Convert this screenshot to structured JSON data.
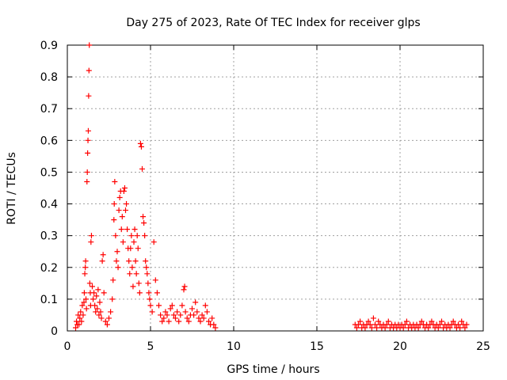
{
  "chart_data": {
    "type": "scatter",
    "title": "Day 275 of 2023, Rate Of TEC Index for receiver glps",
    "xlabel": "GPS time / hours",
    "ylabel": "ROTI / TECUs",
    "xlim": [
      0,
      25
    ],
    "ylim": [
      0,
      0.9
    ],
    "x_ticks": [
      "0",
      "5",
      "10",
      "15",
      "20",
      "25"
    ],
    "y_ticks": [
      "0",
      "0.1",
      "0.2",
      "0.3",
      "0.4",
      "0.5",
      "0.6",
      "0.7",
      "0.8",
      "0.9"
    ],
    "grid": true,
    "legend": "none",
    "marker": "+",
    "color": "#ff0000",
    "series": [
      {
        "name": "",
        "points": [
          [
            0.5,
            0.01
          ],
          [
            0.55,
            0.03
          ],
          [
            0.6,
            0.02
          ],
          [
            0.65,
            0.05
          ],
          [
            0.7,
            0.02
          ],
          [
            0.75,
            0.04
          ],
          [
            0.8,
            0.06
          ],
          [
            0.85,
            0.03
          ],
          [
            0.9,
            0.08
          ],
          [
            0.95,
            0.05
          ],
          [
            1.0,
            0.09
          ],
          [
            1.02,
            0.12
          ],
          [
            1.05,
            0.18
          ],
          [
            1.08,
            0.2
          ],
          [
            1.1,
            0.22
          ],
          [
            1.12,
            0.1
          ],
          [
            1.15,
            0.07
          ],
          [
            1.18,
            0.47
          ],
          [
            1.2,
            0.5
          ],
          [
            1.22,
            0.56
          ],
          [
            1.24,
            0.6
          ],
          [
            1.26,
            0.63
          ],
          [
            1.28,
            0.74
          ],
          [
            1.3,
            0.82
          ],
          [
            1.32,
            0.9
          ],
          [
            1.35,
            0.15
          ],
          [
            1.38,
            0.12
          ],
          [
            1.4,
            0.08
          ],
          [
            1.42,
            0.28
          ],
          [
            1.45,
            0.3
          ],
          [
            1.5,
            0.14
          ],
          [
            1.55,
            0.1
          ],
          [
            1.6,
            0.12
          ],
          [
            1.65,
            0.08
          ],
          [
            1.7,
            0.06
          ],
          [
            1.75,
            0.11
          ],
          [
            1.8,
            0.07
          ],
          [
            1.85,
            0.13
          ],
          [
            1.9,
            0.05
          ],
          [
            1.95,
            0.09
          ],
          [
            2.0,
            0.06
          ],
          [
            2.05,
            0.04
          ],
          [
            2.1,
            0.22
          ],
          [
            2.15,
            0.24
          ],
          [
            2.2,
            0.12
          ],
          [
            2.3,
            0.03
          ],
          [
            2.4,
            0.02
          ],
          [
            2.5,
            0.04
          ],
          [
            2.6,
            0.06
          ],
          [
            2.7,
            0.1
          ],
          [
            2.75,
            0.16
          ],
          [
            2.8,
            0.35
          ],
          [
            2.82,
            0.4
          ],
          [
            2.85,
            0.47
          ],
          [
            2.9,
            0.3
          ],
          [
            2.95,
            0.22
          ],
          [
            3.0,
            0.25
          ],
          [
            3.05,
            0.2
          ],
          [
            3.1,
            0.38
          ],
          [
            3.15,
            0.42
          ],
          [
            3.2,
            0.44
          ],
          [
            3.25,
            0.32
          ],
          [
            3.3,
            0.36
          ],
          [
            3.35,
            0.28
          ],
          [
            3.4,
            0.44
          ],
          [
            3.45,
            0.45
          ],
          [
            3.5,
            0.38
          ],
          [
            3.55,
            0.4
          ],
          [
            3.6,
            0.32
          ],
          [
            3.65,
            0.26
          ],
          [
            3.7,
            0.22
          ],
          [
            3.75,
            0.18
          ],
          [
            3.8,
            0.26
          ],
          [
            3.85,
            0.3
          ],
          [
            3.9,
            0.2
          ],
          [
            3.95,
            0.14
          ],
          [
            4.0,
            0.28
          ],
          [
            4.05,
            0.32
          ],
          [
            4.1,
            0.22
          ],
          [
            4.15,
            0.18
          ],
          [
            4.2,
            0.3
          ],
          [
            4.25,
            0.26
          ],
          [
            4.3,
            0.15
          ],
          [
            4.35,
            0.12
          ],
          [
            4.4,
            0.59
          ],
          [
            4.45,
            0.58
          ],
          [
            4.5,
            0.51
          ],
          [
            4.55,
            0.36
          ],
          [
            4.6,
            0.34
          ],
          [
            4.65,
            0.3
          ],
          [
            4.7,
            0.22
          ],
          [
            4.75,
            0.2
          ],
          [
            4.8,
            0.18
          ],
          [
            4.85,
            0.15
          ],
          [
            4.9,
            0.12
          ],
          [
            4.95,
            0.1
          ],
          [
            5.0,
            0.08
          ],
          [
            5.1,
            0.06
          ],
          [
            5.2,
            0.28
          ],
          [
            5.3,
            0.16
          ],
          [
            5.4,
            0.12
          ],
          [
            5.5,
            0.08
          ],
          [
            5.6,
            0.05
          ],
          [
            5.7,
            0.03
          ],
          [
            5.8,
            0.04
          ],
          [
            5.9,
            0.06
          ],
          [
            6.0,
            0.05
          ],
          [
            6.1,
            0.03
          ],
          [
            6.2,
            0.07
          ],
          [
            6.3,
            0.08
          ],
          [
            6.4,
            0.05
          ],
          [
            6.5,
            0.04
          ],
          [
            6.6,
            0.06
          ],
          [
            6.7,
            0.03
          ],
          [
            6.8,
            0.05
          ],
          [
            6.9,
            0.08
          ],
          [
            7.0,
            0.13
          ],
          [
            7.05,
            0.14
          ],
          [
            7.1,
            0.06
          ],
          [
            7.2,
            0.04
          ],
          [
            7.3,
            0.03
          ],
          [
            7.4,
            0.05
          ],
          [
            7.5,
            0.07
          ],
          [
            7.6,
            0.05
          ],
          [
            7.7,
            0.09
          ],
          [
            7.8,
            0.06
          ],
          [
            7.9,
            0.04
          ],
          [
            8.0,
            0.03
          ],
          [
            8.1,
            0.05
          ],
          [
            8.2,
            0.04
          ],
          [
            8.3,
            0.08
          ],
          [
            8.4,
            0.06
          ],
          [
            8.5,
            0.03
          ],
          [
            8.6,
            0.02
          ],
          [
            8.7,
            0.04
          ],
          [
            8.8,
            0.02
          ],
          [
            8.9,
            0.01
          ],
          [
            17.3,
            0.02
          ],
          [
            17.4,
            0.01
          ],
          [
            17.5,
            0.02
          ],
          [
            17.6,
            0.03
          ],
          [
            17.7,
            0.01
          ],
          [
            17.8,
            0.02
          ],
          [
            17.9,
            0.01
          ],
          [
            18.0,
            0.02
          ],
          [
            18.1,
            0.03
          ],
          [
            18.2,
            0.02
          ],
          [
            18.3,
            0.01
          ],
          [
            18.4,
            0.04
          ],
          [
            18.5,
            0.02
          ],
          [
            18.6,
            0.01
          ],
          [
            18.7,
            0.03
          ],
          [
            18.8,
            0.02
          ],
          [
            18.9,
            0.01
          ],
          [
            19.0,
            0.02
          ],
          [
            19.1,
            0.01
          ],
          [
            19.2,
            0.02
          ],
          [
            19.3,
            0.03
          ],
          [
            19.4,
            0.01
          ],
          [
            19.5,
            0.02
          ],
          [
            19.6,
            0.01
          ],
          [
            19.7,
            0.02
          ],
          [
            19.8,
            0.01
          ],
          [
            19.9,
            0.02
          ],
          [
            20.0,
            0.01
          ],
          [
            20.1,
            0.02
          ],
          [
            20.2,
            0.01
          ],
          [
            20.3,
            0.02
          ],
          [
            20.4,
            0.03
          ],
          [
            20.5,
            0.01
          ],
          [
            20.6,
            0.02
          ],
          [
            20.7,
            0.01
          ],
          [
            20.8,
            0.02
          ],
          [
            20.9,
            0.01
          ],
          [
            21.0,
            0.02
          ],
          [
            21.1,
            0.01
          ],
          [
            21.2,
            0.02
          ],
          [
            21.3,
            0.03
          ],
          [
            21.4,
            0.02
          ],
          [
            21.5,
            0.01
          ],
          [
            21.6,
            0.02
          ],
          [
            21.7,
            0.01
          ],
          [
            21.8,
            0.02
          ],
          [
            21.9,
            0.03
          ],
          [
            22.0,
            0.02
          ],
          [
            22.1,
            0.01
          ],
          [
            22.2,
            0.02
          ],
          [
            22.3,
            0.01
          ],
          [
            22.4,
            0.02
          ],
          [
            22.5,
            0.03
          ],
          [
            22.6,
            0.01
          ],
          [
            22.7,
            0.02
          ],
          [
            22.8,
            0.01
          ],
          [
            22.9,
            0.02
          ],
          [
            23.0,
            0.01
          ],
          [
            23.1,
            0.02
          ],
          [
            23.2,
            0.03
          ],
          [
            23.3,
            0.02
          ],
          [
            23.4,
            0.01
          ],
          [
            23.5,
            0.02
          ],
          [
            23.6,
            0.01
          ],
          [
            23.7,
            0.03
          ],
          [
            23.8,
            0.02
          ],
          [
            23.9,
            0.01
          ],
          [
            24.0,
            0.02
          ]
        ]
      }
    ]
  }
}
